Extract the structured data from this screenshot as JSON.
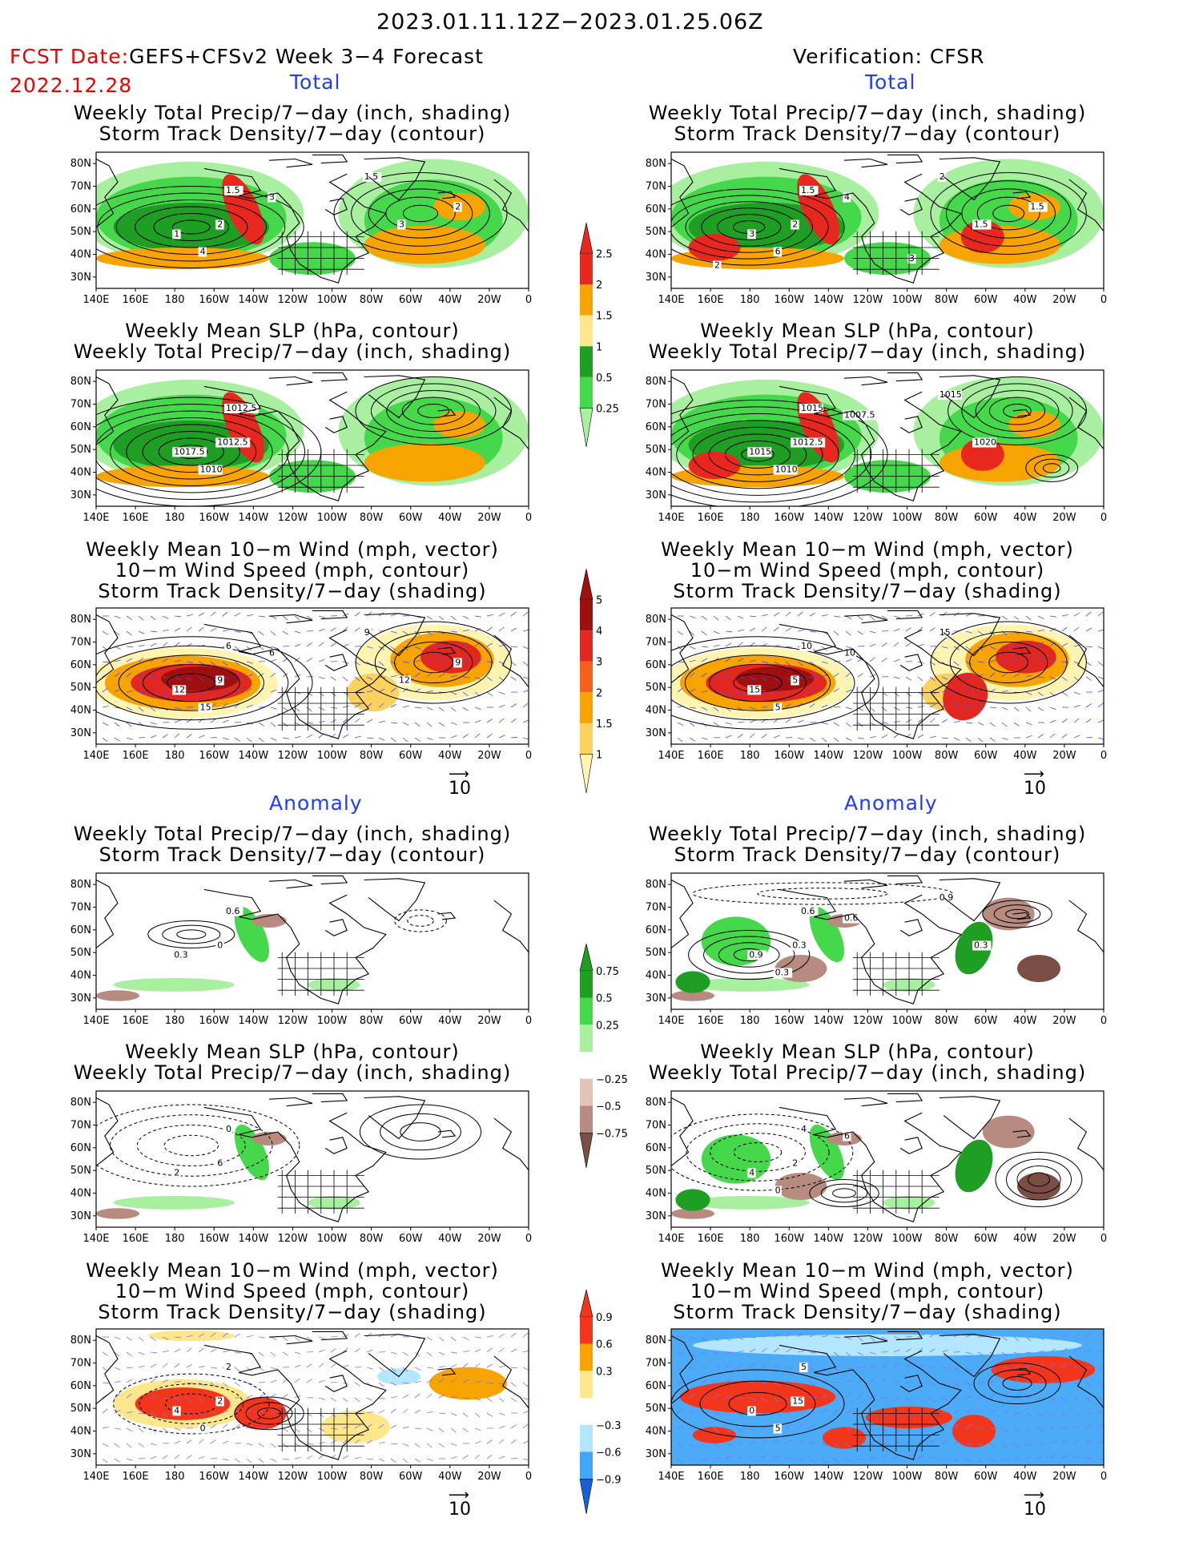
{
  "header": {
    "period": "2023.01.11.12Z−2023.01.25.06Z",
    "fcst_label": "FCST Date:",
    "fcst_product": "GEFS+CFSv2 Week 3−4 Forecast",
    "fcst_date": "2022.12.28",
    "verification": "Verification: CFSR"
  },
  "sections": {
    "total_left": "Total",
    "total_right": "Total",
    "anomaly_left": "Anomaly",
    "anomaly_right": "Anomaly"
  },
  "panel_titles": {
    "precip_track": [
      "Weekly Total Precip/7−day (inch, shading)",
      "Storm Track Density/7−day (contour)"
    ],
    "slp_precip": [
      "Weekly Mean SLP (hPa, contour)",
      "Weekly Total Precip/7−day (inch, shading)"
    ],
    "wind_track": [
      "Weekly Mean 10−m Wind (mph, vector)",
      "10−m Wind Speed (mph, contour)",
      "Storm Track Density/7−day (shading)"
    ]
  },
  "axes": {
    "lat_labels": [
      "80N",
      "70N",
      "60N",
      "50N",
      "40N",
      "30N"
    ],
    "lon_labels": [
      "140E",
      "160E",
      "180",
      "160W",
      "140W",
      "120W",
      "100W",
      "80W",
      "60W",
      "40W",
      "20W",
      "0"
    ]
  },
  "vector_ref": "10",
  "colorbars": {
    "precip_total": {
      "labels": [
        "2.5",
        "2",
        "1.5",
        "1",
        "0.5",
        "0.25"
      ],
      "colors": [
        "#e8281e",
        "#f7a400",
        "#fde78a",
        "#1e9f23",
        "#45d84a",
        "#a8f0a0"
      ]
    },
    "track_total": {
      "labels": [
        "5",
        "4",
        "3",
        "2",
        "1.5",
        "1"
      ],
      "colors": [
        "#9e0f10",
        "#e22720",
        "#f2621c",
        "#f7a400",
        "#fbd25e",
        "#fff5b0"
      ]
    },
    "precip_anom": {
      "labels": [
        "0.75",
        "0.5",
        "0.25",
        "−0.25",
        "−0.5",
        "−0.75"
      ],
      "colors": [
        "#1e9f23",
        "#45d84a",
        "#a8f0a0",
        "#ffffff",
        "#e3c3b8",
        "#b78b80",
        "#7a4e44"
      ]
    },
    "track_anom": {
      "labels": [
        "0.9",
        "0.6",
        "0.3",
        "−0.3",
        "−0.6",
        "−0.9"
      ],
      "colors": [
        "#f2361c",
        "#f7a400",
        "#fde78a",
        "#ffffff",
        "#b3e6ff",
        "#41a6f5",
        "#1660dc"
      ]
    }
  },
  "contour_labels": {
    "p1": [
      "1.5",
      "2",
      "1",
      "4",
      "3",
      "1.5",
      "3",
      "2"
    ],
    "p2": [
      "1.5",
      "2",
      "3",
      "6",
      "4",
      "2",
      "1.5",
      "1.5",
      "3",
      "2"
    ],
    "p3": [
      "1012.5",
      "1012.5",
      "1017.5",
      "1010"
    ],
    "p4": [
      "1015",
      "1012.5",
      "1015",
      "1010",
      "1007.5",
      "1015",
      "1020"
    ],
    "p5": [
      "6",
      "9",
      "12",
      "15",
      "6",
      "9",
      "12",
      "9"
    ],
    "p6": [
      "10",
      "5",
      "15",
      "5",
      "10",
      "15"
    ],
    "p7": [
      "0.6",
      "0",
      "0.3"
    ],
    "p8": [
      "0.6",
      "0.3",
      "0.9",
      "0.3",
      "0.6",
      "0.9",
      "0.3"
    ],
    "p9": [
      "0",
      "6",
      "2"
    ],
    "p10": [
      "4",
      "2",
      "4",
      "0",
      "6"
    ],
    "p11": [
      "2",
      "2",
      "4",
      "0"
    ],
    "p12": [
      "5",
      "15",
      "0",
      "5"
    ]
  }
}
